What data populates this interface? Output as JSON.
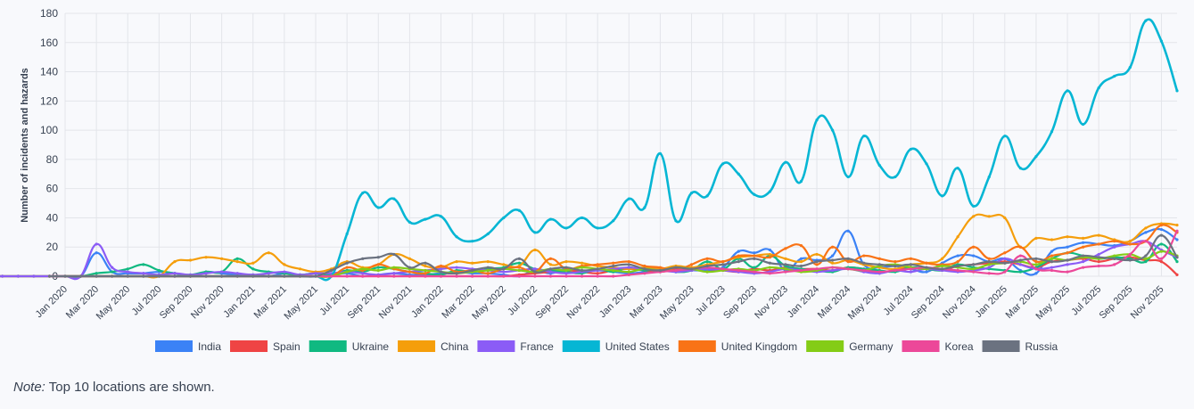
{
  "chart_data": {
    "type": "line",
    "title": "",
    "xlabel": "",
    "ylabel": "Number of incidents and hazards",
    "ylim": [
      0,
      180
    ],
    "yticks": [
      0,
      20,
      40,
      60,
      80,
      100,
      120,
      140,
      160,
      180
    ],
    "grid": true,
    "legend_position": "bottom",
    "tick_labels": [
      "Jan 2020",
      "Mar 2020",
      "May 2020",
      "Jul 2020",
      "Sep 2020",
      "Nov 2020",
      "Jan 2021",
      "Mar 2021",
      "May 2021",
      "Jul 2021",
      "Sep 2021",
      "Nov 2021",
      "Jan 2022",
      "Mar 2022",
      "May 2022",
      "Jul 2022",
      "Sep 2022",
      "Nov 2022",
      "Jan 2023",
      "Mar 2023",
      "May 2023",
      "Jul 2023",
      "Sep 2023",
      "Nov 2023",
      "Jan 2024",
      "Mar 2024",
      "May 2024",
      "Jul 2024",
      "Sep 2024",
      "Nov 2024",
      "Jan 2025",
      "Mar 2025",
      "May 2025",
      "Jul 2025",
      "Sep 2025",
      "Nov 2025"
    ],
    "series": [
      {
        "name": "India",
        "color": "#3b82f6",
        "values": [
          0,
          0,
          0,
          0,
          0,
          0,
          0,
          0,
          0,
          0,
          0,
          0,
          0,
          0,
          0,
          0,
          0,
          0,
          16,
          3,
          2,
          2,
          3,
          2,
          0,
          3,
          2,
          1,
          1,
          0,
          2,
          1,
          2,
          1,
          2,
          0,
          1,
          2,
          1,
          1,
          2,
          3,
          2,
          2,
          1,
          0,
          4,
          2,
          5,
          3,
          4,
          3,
          2,
          3,
          5,
          3,
          4,
          4,
          6,
          17,
          16,
          18,
          4,
          12,
          11,
          14,
          31,
          8,
          6,
          7,
          5,
          3,
          9,
          14,
          14,
          10,
          12,
          4,
          2,
          17,
          20,
          23,
          22,
          21,
          24,
          30,
          32,
          25
        ]
      },
      {
        "name": "Spain",
        "color": "#ef4444",
        "values": [
          0,
          0,
          0,
          0,
          0,
          0,
          0,
          0,
          0,
          0,
          0,
          0,
          0,
          0,
          0,
          0,
          0,
          0,
          0,
          0,
          0,
          0,
          0,
          0,
          0,
          0,
          0,
          0,
          0,
          0,
          0,
          0,
          0,
          0,
          0,
          0,
          0,
          0,
          0,
          0,
          0,
          0,
          0,
          0,
          0,
          1,
          2,
          3,
          4,
          3,
          2,
          4,
          5,
          4,
          3,
          5,
          6,
          5,
          4,
          3,
          5,
          4,
          6,
          5,
          5,
          4,
          6,
          5,
          3,
          4,
          6,
          5,
          4,
          7,
          8,
          9,
          10,
          8,
          6,
          10,
          11,
          12,
          10,
          12,
          13,
          11,
          10,
          1
        ]
      },
      {
        "name": "Ukraine",
        "color": "#10b981",
        "values": [
          0,
          0,
          0,
          0,
          0,
          0,
          0,
          0,
          0,
          0,
          0,
          0,
          0,
          0,
          0,
          0,
          0,
          0,
          2,
          3,
          5,
          8,
          4,
          2,
          1,
          3,
          3,
          12,
          5,
          3,
          2,
          1,
          2,
          1,
          4,
          3,
          6,
          5,
          3,
          2,
          1,
          4,
          3,
          5,
          6,
          9,
          5,
          4,
          3,
          2,
          5,
          3,
          6,
          4,
          5,
          3,
          4,
          10,
          5,
          12,
          6,
          14,
          7,
          5,
          4,
          3,
          6,
          5,
          4,
          3,
          6,
          5,
          4,
          8,
          6,
          5,
          4,
          3,
          6,
          12,
          16,
          14,
          12,
          13,
          12,
          10,
          22,
          10
        ]
      },
      {
        "name": "China",
        "color": "#f59e0b",
        "values": [
          0,
          0,
          0,
          0,
          0,
          0,
          0,
          0,
          0,
          0,
          0,
          0,
          0,
          0,
          0,
          0,
          0,
          0,
          10,
          11,
          13,
          12,
          10,
          9,
          16,
          8,
          5,
          3,
          5,
          10,
          6,
          8,
          15,
          12,
          7,
          6,
          10,
          9,
          10,
          8,
          7,
          18,
          8,
          10,
          9,
          7,
          6,
          5,
          6,
          5,
          7,
          6,
          8,
          10,
          13,
          14,
          15,
          12,
          10,
          15,
          9,
          11,
          8,
          6,
          5,
          8,
          9,
          12,
          27,
          41,
          41,
          40,
          20,
          26,
          25,
          27,
          26,
          28,
          25,
          24,
          33,
          36,
          35
        ]
      },
      {
        "name": "France",
        "color": "#8b5cf6",
        "values": [
          0,
          0,
          0,
          0,
          0,
          0,
          0,
          0,
          0,
          0,
          0,
          0,
          0,
          0,
          0,
          0,
          0,
          0,
          22,
          6,
          3,
          2,
          1,
          2,
          1,
          2,
          3,
          2,
          1,
          2,
          3,
          1,
          2,
          2,
          3,
          2,
          1,
          2,
          3,
          4,
          5,
          6,
          5,
          4,
          3,
          4,
          5,
          3,
          2,
          3,
          4,
          5,
          6,
          5,
          4,
          3,
          4,
          5,
          4,
          3,
          2,
          3,
          5,
          4,
          3,
          4,
          5,
          3,
          2,
          4,
          3,
          5,
          4,
          3,
          4,
          6,
          12,
          8,
          5,
          6,
          8,
          10,
          15,
          20,
          22,
          24,
          18,
          13
        ]
      },
      {
        "name": "United States",
        "color": "#06b6d4",
        "values": [
          0,
          0,
          0,
          0,
          0,
          0,
          0,
          0,
          0,
          0,
          0,
          0,
          0,
          0,
          0,
          0,
          0,
          0,
          29,
          57,
          47,
          53,
          37,
          39,
          41,
          27,
          24,
          29,
          40,
          45,
          30,
          39,
          33,
          40,
          33,
          38,
          53,
          47,
          84,
          38,
          57,
          55,
          77,
          70,
          56,
          58,
          78,
          65,
          107,
          100,
          68,
          96,
          76,
          68,
          87,
          77,
          55,
          74,
          48,
          68,
          96,
          74,
          82,
          99,
          127,
          104,
          129,
          137,
          143,
          175,
          161,
          127
        ]
      },
      {
        "name": "United Kingdom",
        "color": "#f97316",
        "values": [
          0,
          0,
          0,
          0,
          0,
          0,
          0,
          0,
          0,
          0,
          0,
          0,
          0,
          0,
          0,
          0,
          0,
          0,
          6,
          4,
          8,
          5,
          3,
          2,
          7,
          3,
          4,
          2,
          5,
          6,
          3,
          12,
          5,
          7,
          8,
          9,
          10,
          7,
          6,
          4,
          8,
          12,
          10,
          14,
          14,
          13,
          19,
          21,
          8,
          20,
          10,
          14,
          12,
          10,
          12,
          9,
          8,
          10,
          20,
          12,
          16,
          20,
          10,
          14,
          16,
          20,
          22,
          24,
          22,
          24,
          35,
          30
        ]
      },
      {
        "name": "Germany",
        "color": "#84cc16",
        "values": [
          0,
          0,
          0,
          0,
          0,
          0,
          0,
          0,
          0,
          0,
          0,
          0,
          0,
          0,
          0,
          0,
          0,
          0,
          3,
          5,
          4,
          6,
          5,
          4,
          3,
          2,
          3,
          4,
          5,
          4,
          3,
          5,
          4,
          6,
          5,
          4,
          3,
          5,
          4,
          6,
          5,
          3,
          4,
          5,
          4,
          6,
          5,
          3,
          4,
          6,
          5,
          4,
          7,
          8,
          6,
          5,
          7,
          6,
          5,
          8,
          9,
          10,
          8,
          12,
          11,
          13,
          12,
          14,
          15,
          12,
          17,
          14
        ]
      },
      {
        "name": "Korea",
        "color": "#ec4899",
        "values": [
          0,
          0,
          0,
          0,
          0,
          0,
          0,
          0,
          0,
          0,
          0,
          0,
          0,
          0,
          0,
          0,
          0,
          0,
          0,
          0,
          0,
          0,
          0,
          0,
          0,
          0,
          0,
          0,
          0,
          0,
          0,
          0,
          0,
          0,
          0,
          0,
          0,
          1,
          2,
          3,
          4,
          5,
          6,
          5,
          4,
          3,
          2,
          3,
          4,
          5,
          6,
          5,
          4,
          3,
          4,
          5,
          6,
          5,
          4,
          3,
          2,
          3,
          14,
          5,
          4,
          3,
          6,
          7,
          8,
          15,
          24,
          12,
          31
        ]
      },
      {
        "name": "Russia",
        "color": "#6b7280",
        "values": [
          0,
          0,
          0,
          0,
          0,
          0,
          0,
          0,
          0,
          0,
          0,
          0,
          0,
          0,
          0,
          0,
          0,
          0,
          4,
          9,
          12,
          13,
          15,
          6,
          9,
          3,
          2,
          4,
          6,
          5,
          12,
          3,
          5,
          6,
          4,
          5,
          7,
          8,
          5,
          4,
          6,
          5,
          7,
          8,
          10,
          12,
          9,
          8,
          7,
          10,
          11,
          12,
          9,
          8,
          7,
          8,
          6,
          5,
          7,
          8,
          10,
          9,
          11,
          12,
          10,
          11,
          14,
          13,
          12,
          11,
          14,
          28,
          13
        ]
      }
    ]
  },
  "note": {
    "label": "Note:",
    "text": " Top 10 locations are shown."
  }
}
